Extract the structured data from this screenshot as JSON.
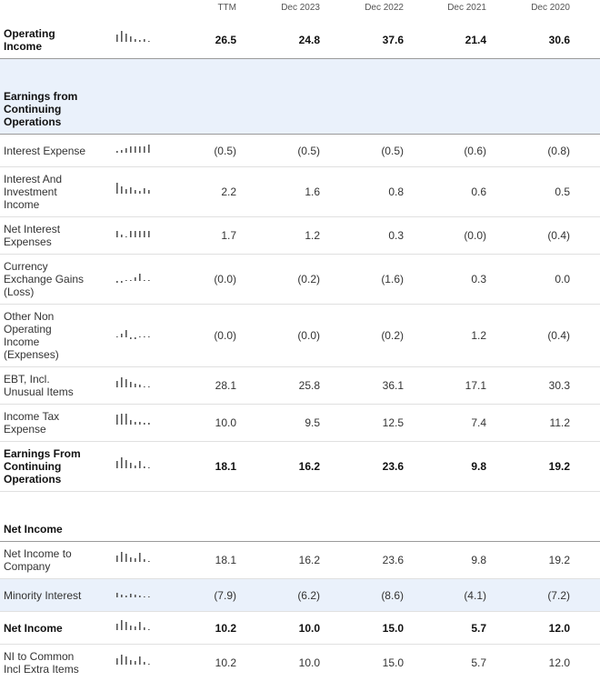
{
  "columns": [
    "TTM",
    "Dec 2023",
    "Dec 2022",
    "Dec 2021",
    "Dec 2020"
  ],
  "rows": [
    {
      "label": "Operating Income",
      "values": [
        "26.5",
        "24.8",
        "37.6",
        "21.4",
        "30.6"
      ],
      "bold": true
    },
    {
      "label": "Earnings from Continuing Operations",
      "values": [
        "",
        "",
        "",
        "",
        ""
      ],
      "section": true
    },
    {
      "label": "Interest Expense",
      "values": [
        "(0.5)",
        "(0.5)",
        "(0.5)",
        "(0.6)",
        "(0.8)"
      ]
    },
    {
      "label": "Interest And Investment Income",
      "values": [
        "2.2",
        "1.6",
        "0.8",
        "0.6",
        "0.5"
      ]
    },
    {
      "label": "Net Interest Expenses",
      "values": [
        "1.7",
        "1.2",
        "0.3",
        "(0.0)",
        "(0.4)"
      ]
    },
    {
      "label": "Currency Exchange Gains (Loss)",
      "values": [
        "(0.0)",
        "(0.2)",
        "(1.6)",
        "0.3",
        "0.0"
      ]
    },
    {
      "label": "Other Non Operating Income (Expenses)",
      "values": [
        "(0.0)",
        "(0.0)",
        "(0.2)",
        "1.2",
        "(0.4)"
      ]
    },
    {
      "label": "EBT, Incl. Unusual Items",
      "values": [
        "28.1",
        "25.8",
        "36.1",
        "17.1",
        "30.3"
      ]
    },
    {
      "label": "Income Tax Expense",
      "values": [
        "10.0",
        "9.5",
        "12.5",
        "7.4",
        "11.2"
      ]
    },
    {
      "label": "Earnings From Continuing Operations",
      "values": [
        "18.1",
        "16.2",
        "23.6",
        "9.8",
        "19.2"
      ],
      "bold": true
    },
    {
      "label": "Net Income",
      "values": [
        "",
        "",
        "",
        "",
        ""
      ],
      "bold": true
    },
    {
      "label": "Net Income to Company",
      "values": [
        "18.1",
        "16.2",
        "23.6",
        "9.8",
        "19.2"
      ]
    },
    {
      "label": "Minority Interest",
      "values": [
        "(7.9)",
        "(6.2)",
        "(8.6)",
        "(4.1)",
        "(7.2)"
      ]
    },
    {
      "label": "Net Income",
      "values": [
        "10.2",
        "10.0",
        "15.0",
        "5.7",
        "12.0"
      ],
      "bold": true
    },
    {
      "label": "NI to Common Incl Extra Items",
      "values": [
        "10.2",
        "10.0",
        "15.0",
        "5.7",
        "12.0"
      ]
    }
  ]
}
